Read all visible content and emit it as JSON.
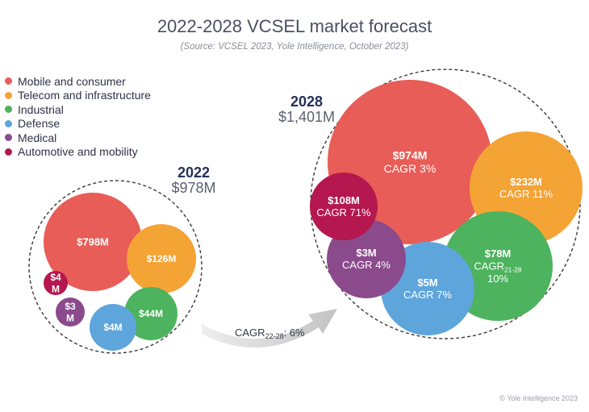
{
  "chart_data": {
    "type": "bubble",
    "title": "2022-2028 VCSEL market forecast",
    "subtitle": "(Source: VCSEL 2023, Yole Intelligence, October 2023)",
    "unit": "$M",
    "legend": [
      {
        "name": "Mobile and consumer",
        "color": "#e85d57"
      },
      {
        "name": "Telecom and infrastructure",
        "color": "#f4a335"
      },
      {
        "name": "Industrial",
        "color": "#4db35e"
      },
      {
        "name": "Defense",
        "color": "#5ea5dc"
      },
      {
        "name": "Medical",
        "color": "#8a4a8c"
      },
      {
        "name": "Automotive and mobility",
        "color": "#b5174f"
      }
    ],
    "groups": [
      {
        "year": "2022",
        "total_label": "$978M",
        "total": 978,
        "bubbles": [
          {
            "segment": "Mobile and consumer",
            "value": 798,
            "label": "$798M"
          },
          {
            "segment": "Telecom and infrastructure",
            "value": 126,
            "label": "$126M"
          },
          {
            "segment": "Industrial",
            "value": 44,
            "label": "$44M"
          },
          {
            "segment": "Defense",
            "value": 4,
            "label": "$4M"
          },
          {
            "segment": "Medical",
            "value": 3,
            "label_lines": [
              "$3",
              "M"
            ]
          },
          {
            "segment": "Automotive and mobility",
            "value": 4,
            "label_lines": [
              "$4",
              "M"
            ]
          }
        ]
      },
      {
        "year": "2028",
        "total_label": "$1,401M",
        "total": 1401,
        "bubbles": [
          {
            "segment": "Mobile and consumer",
            "value": 974,
            "label": "$974M",
            "cagr": "CAGR 3%"
          },
          {
            "segment": "Telecom and infrastructure",
            "value": 232,
            "label": "$232M",
            "cagr": "CAGR 11%"
          },
          {
            "segment": "Industrial",
            "value": 78,
            "label": "$78M",
            "cagr_base": "CAGR",
            "cagr_sub": "21-28",
            "cagr_value": "10%"
          },
          {
            "segment": "Defense",
            "value": 5,
            "label": "$5M",
            "cagr": "CAGR 7%"
          },
          {
            "segment": "Medical",
            "value": 3,
            "label": "$3M",
            "cagr": "CAGR 4%"
          },
          {
            "segment": "Automotive and mobility",
            "value": 108,
            "label": "$108M",
            "cagr": "CAGR 71%"
          }
        ]
      }
    ],
    "growth": {
      "prefix": "CAGR",
      "sub": "22-28",
      "suffix": ": 6%"
    },
    "copyright": "© Yole Intelligence 2023"
  }
}
